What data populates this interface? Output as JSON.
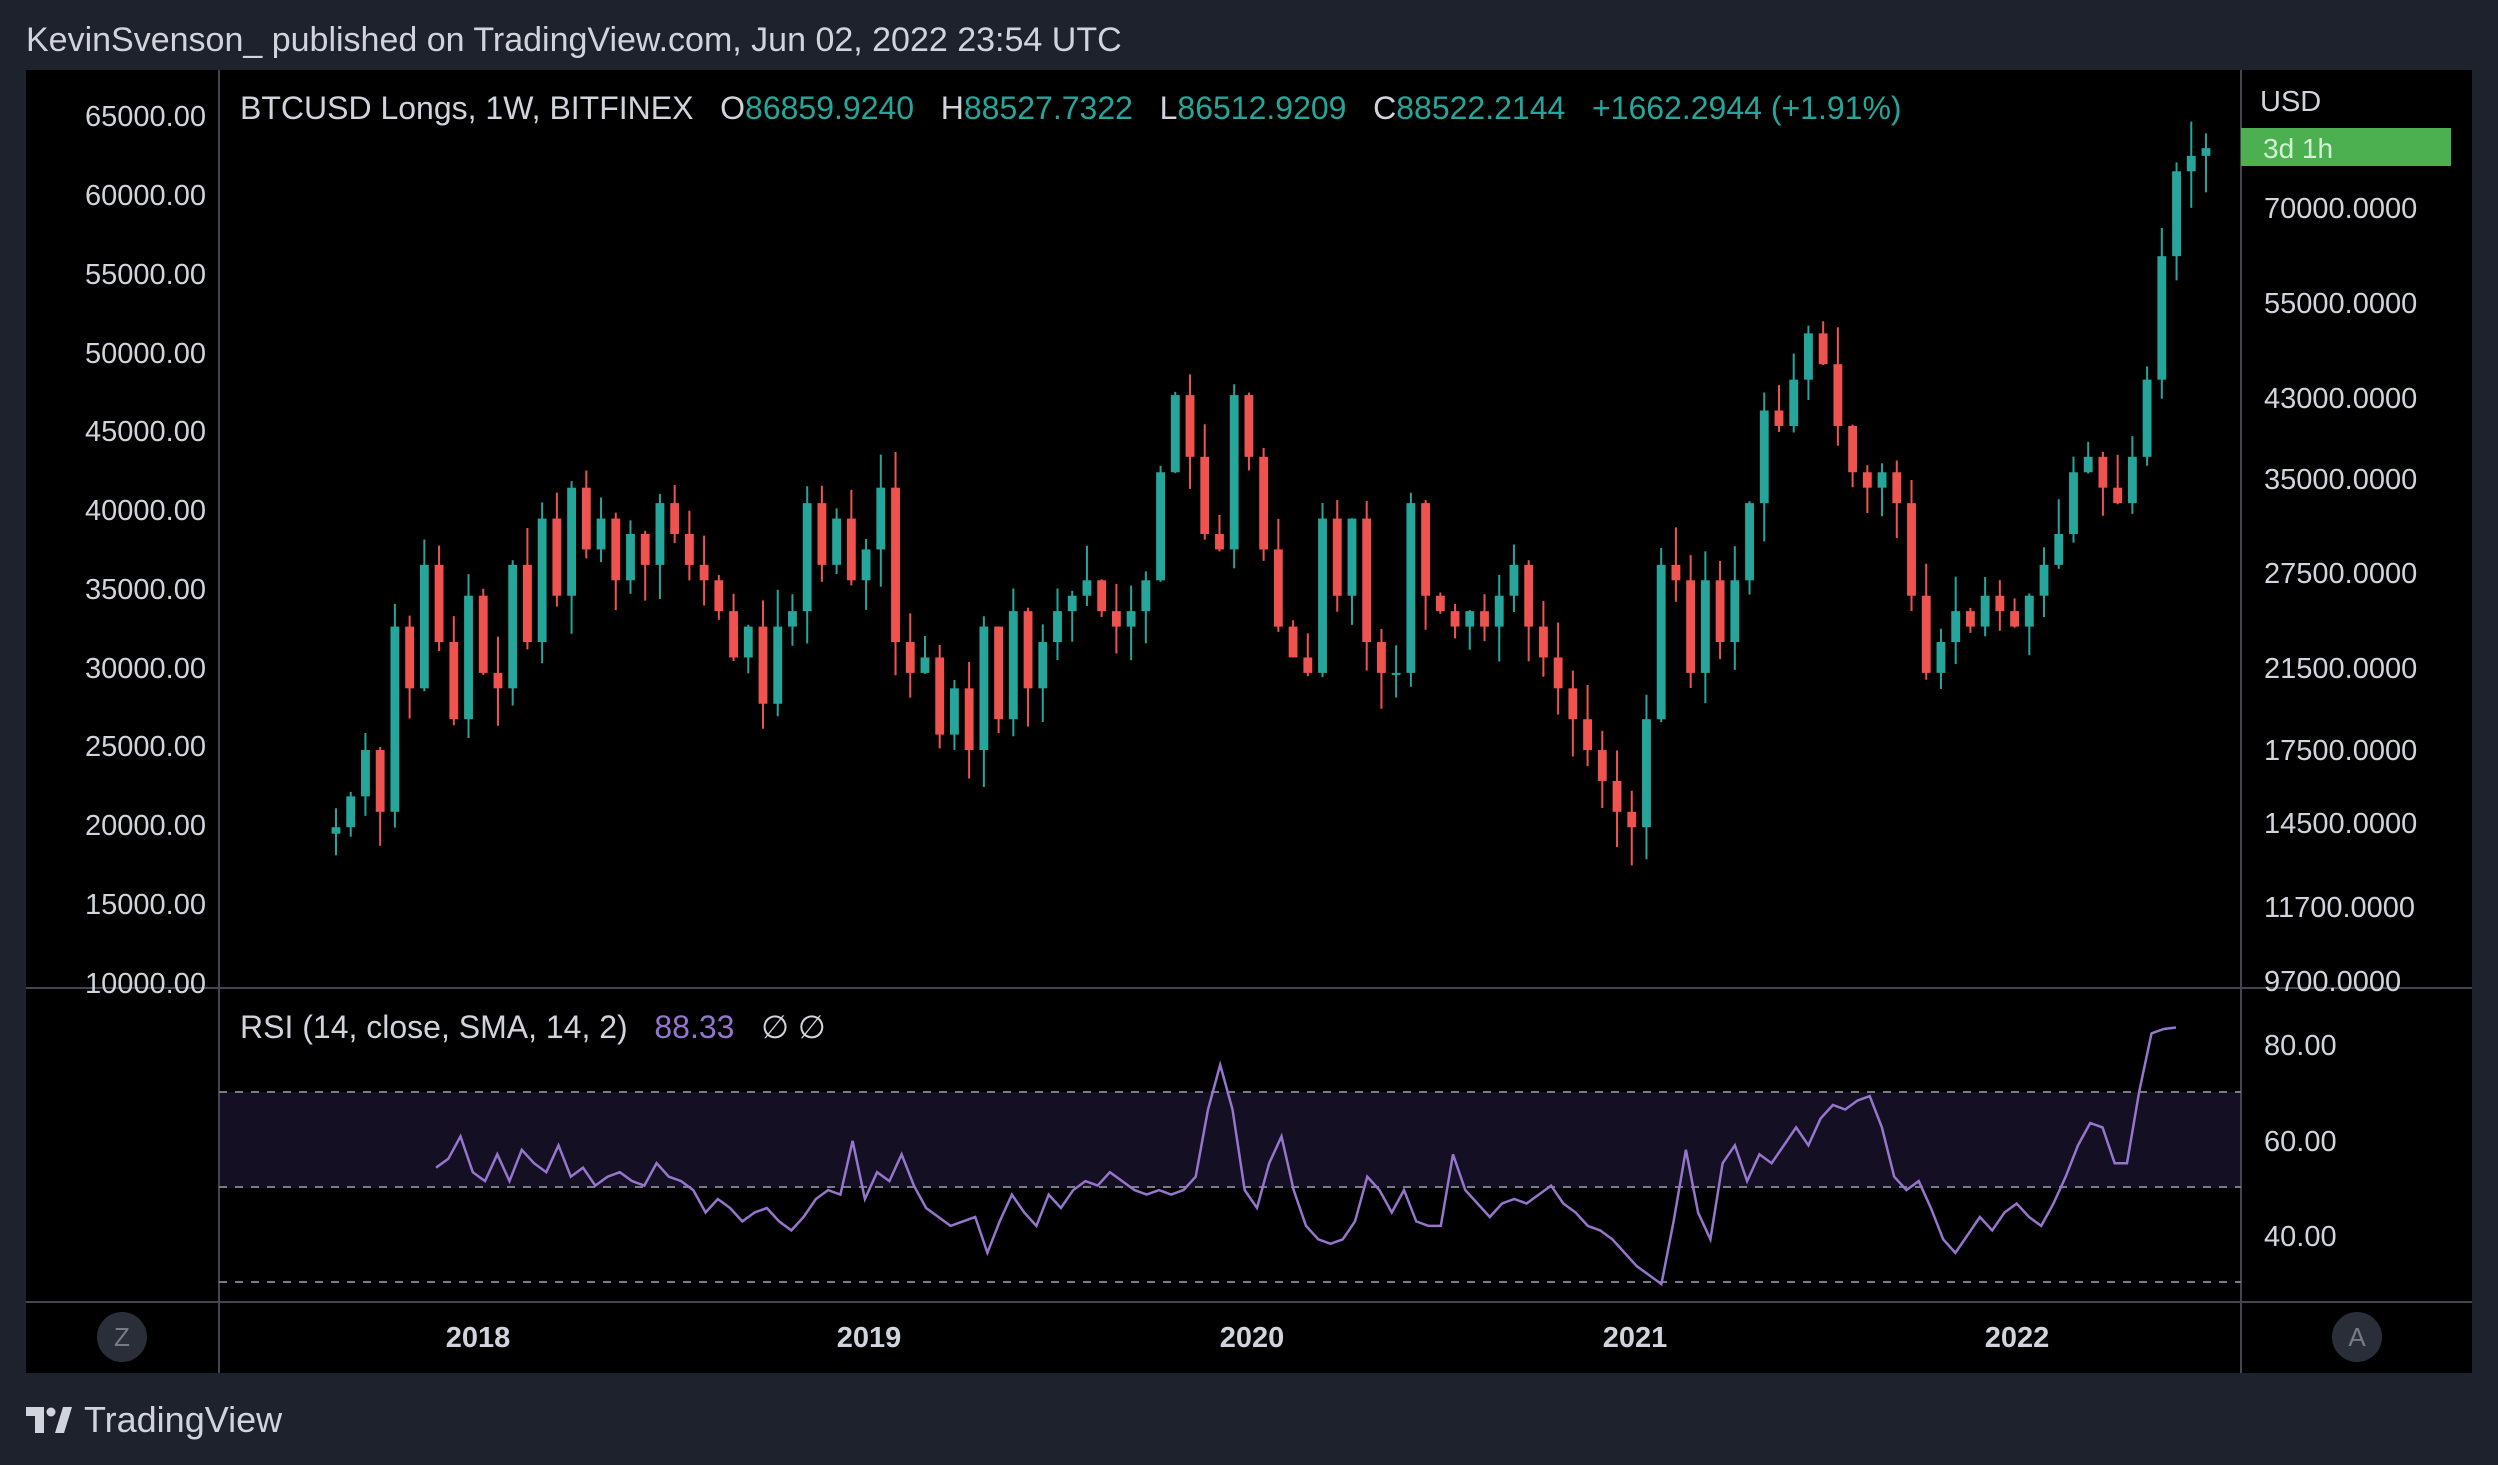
{
  "header": {
    "text": "KevinSvenson_ published on TradingView.com, Jun 02, 2022 23:54 UTC"
  },
  "footer": {
    "brand": "TradingView"
  },
  "legend": {
    "symbol": "BTCUSD Longs, 1W, BITFINEX",
    "o_label": "O",
    "o_value": "86859.9240",
    "h_label": "H",
    "h_value": "88527.7322",
    "l_label": "L",
    "l_value": "86512.9209",
    "c_label": "C",
    "c_value": "88522.2144",
    "change": "+1662.2944 (+1.91%)"
  },
  "rsi_legend": {
    "label": "RSI (14, close, SMA, 14, 2)",
    "value": "88.33",
    "extra": "∅ ∅"
  },
  "right_axis": {
    "currency": "USD",
    "badge": "3d 1h",
    "labels": [
      "70000.0000",
      "55000.0000",
      "43000.0000",
      "35000.0000",
      "27500.0000",
      "21500.0000",
      "17500.0000",
      "14500.0000",
      "11700.0000",
      "9700.0000"
    ]
  },
  "left_axis": {
    "labels": [
      "65000.00",
      "60000.00",
      "55000.00",
      "50000.00",
      "45000.00",
      "40000.00",
      "35000.00",
      "30000.00",
      "25000.00",
      "20000.00",
      "15000.00",
      "10000.00"
    ]
  },
  "rsi_axis": {
    "labels": [
      "80.00",
      "60.00",
      "40.00"
    ]
  },
  "time_axis": {
    "labels": [
      "2018",
      "2019",
      "2020",
      "2021",
      "2022"
    ]
  },
  "buttons": {
    "left": "Z",
    "right": "A"
  },
  "colors": {
    "up": "#26a69a",
    "down": "#ef5350",
    "rsi": "#9575cd",
    "background": "#000000",
    "frame": "#1e222d",
    "badge": "#4caf50"
  },
  "chart_data": [
    {
      "type": "candlestick",
      "title": "BTCUSD Longs, 1W, BITFINEX",
      "ylabel": "USD",
      "ylim": [
        10000,
        66500
      ],
      "x_labels": [
        "2018",
        "2019",
        "2020",
        "2021",
        "2022"
      ],
      "weekly_closes_approx": [
        21000,
        23000,
        26000,
        22000,
        34000,
        30000,
        38000,
        33000,
        28000,
        36000,
        31000,
        30000,
        38000,
        33000,
        41000,
        36000,
        43000,
        39000,
        41000,
        37000,
        40000,
        38000,
        42000,
        40000,
        38000,
        37000,
        35000,
        32000,
        34000,
        29000,
        34000,
        35000,
        42000,
        38000,
        41000,
        37000,
        39000,
        43000,
        33000,
        31000,
        32000,
        27000,
        30000,
        26000,
        34000,
        28000,
        35000,
        30000,
        33000,
        35000,
        36000,
        37000,
        35000,
        34000,
        35000,
        37000,
        44000,
        49000,
        45000,
        40000,
        39000,
        49000,
        45000,
        39000,
        34000,
        32000,
        31000,
        41000,
        36000,
        41000,
        33000,
        31000,
        31000,
        42000,
        36000,
        35000,
        34000,
        35000,
        34000,
        36000,
        38000,
        34000,
        32000,
        30000,
        28000,
        26000,
        24000,
        22000,
        21000,
        28000,
        38000,
        37000,
        31000,
        37000,
        33000,
        37000,
        42000,
        48000,
        47000,
        50000,
        53000,
        51000,
        47000,
        44000,
        43000,
        44000,
        42000,
        36000,
        31000,
        33000,
        35000,
        34000,
        36000,
        35000,
        34000,
        36000,
        38000,
        40000,
        44000,
        45000,
        43000,
        42000,
        45000,
        50000,
        58000,
        63500,
        64500,
        65000
      ],
      "last": {
        "open": 86859.924,
        "high": 88527.7322,
        "low": 86512.9209,
        "close": 88522.2144,
        "change": 1662.2944,
        "change_pct": 1.91
      }
    },
    {
      "type": "line",
      "title": "RSI (14, close, SMA, 14, 2)",
      "ylim": [
        27,
        90
      ],
      "bands": [
        70,
        50,
        30
      ],
      "last_value": 88.33,
      "values": [
        57,
        59,
        64,
        56,
        54,
        60,
        54,
        61,
        58,
        56,
        62,
        55,
        57,
        53,
        55,
        56,
        54,
        53,
        58,
        55,
        54,
        52,
        47,
        50,
        48,
        45,
        47,
        48,
        45,
        43,
        46,
        50,
        52,
        51,
        63,
        50,
        56,
        54,
        60,
        53,
        48,
        46,
        44,
        45,
        46,
        38,
        45,
        51,
        47,
        44,
        51,
        48,
        52,
        54,
        53,
        56,
        54,
        52,
        51,
        52,
        51,
        52,
        55,
        70,
        80,
        70,
        52,
        48,
        58,
        64,
        52,
        44,
        41,
        40,
        41,
        45,
        55,
        52,
        47,
        52,
        45,
        44,
        44,
        60,
        52,
        49,
        46,
        49,
        50,
        49,
        51,
        53,
        49,
        47,
        44,
        43,
        41,
        38,
        35,
        33,
        31,
        45,
        61,
        47,
        41,
        58,
        62,
        54,
        60,
        58,
        62,
        66,
        62,
        68,
        71,
        70,
        72,
        73,
        66,
        55,
        52,
        54,
        48,
        41,
        38,
        42,
        46,
        43,
        47,
        49,
        46,
        44,
        49,
        55,
        62,
        67,
        66,
        58,
        58,
        74,
        87,
        88,
        88.33
      ]
    }
  ]
}
